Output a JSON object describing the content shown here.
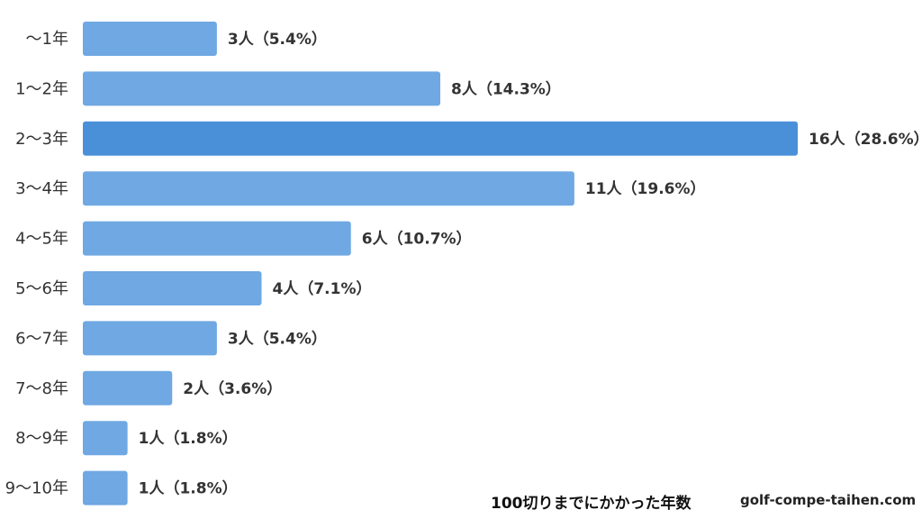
{
  "chart_data": {
    "type": "bar",
    "orientation": "horizontal",
    "categories": [
      "〜1年",
      "1〜2年",
      "2〜3年",
      "3〜4年",
      "4〜5年",
      "5〜6年",
      "6〜7年",
      "7〜8年",
      "8〜9年",
      "9〜10年"
    ],
    "values": [
      3,
      8,
      16,
      11,
      6,
      4,
      3,
      2,
      1,
      1
    ],
    "value_labels": [
      "3人（5.4%）",
      "8人（14.3%）",
      "16人（28.6%）",
      "11人（19.6%）",
      "6人（10.7%）",
      "4人（7.1%）",
      "3人（5.4%）",
      "2人（3.6%）",
      "1人（1.8%）",
      "1人（1.8%）"
    ],
    "highlight_index": 2,
    "xlim": [
      0,
      16
    ],
    "grid": false,
    "colors": {
      "bar": "#6fa8e2",
      "highlight": "#4a90d9"
    },
    "title": "100切りまでにかかった年数"
  },
  "site": "golf-compe-taihen.com"
}
